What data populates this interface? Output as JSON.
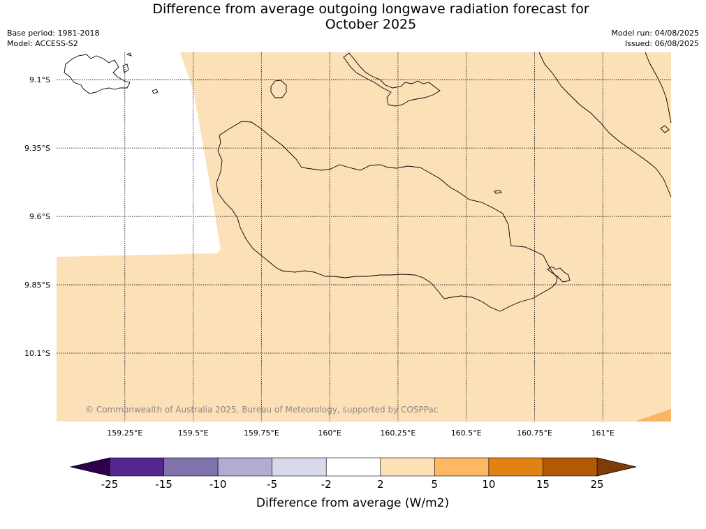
{
  "header": {
    "title_line1": "Difference from average outgoing longwave radiation forecast for",
    "title_line2": "October 2025",
    "base_period": "Base period: 1981-2018",
    "model": "Model: ACCESS-S2",
    "model_run": "Model run: 04/08/2025",
    "issued": "Issued: 06/08/2025"
  },
  "map": {
    "lat_labels": [
      "9.1°S",
      "9.35°S",
      "9.6°S",
      "9.85°S",
      "10.1°S"
    ],
    "lat_values": [
      -9.1,
      -9.35,
      -9.6,
      -9.85,
      -10.1
    ],
    "lon_labels": [
      "159.25°E",
      "159.5°E",
      "159.75°E",
      "160°E",
      "160.25°E",
      "160.5°E",
      "160.75°E",
      "161°E"
    ],
    "lon_values": [
      159.25,
      159.5,
      159.75,
      160.0,
      160.25,
      160.5,
      160.75,
      161.0
    ],
    "lon_range": [
      159.0,
      161.25
    ],
    "lat_range": [
      -9.0,
      -10.35
    ],
    "fill_color": "#fce0b7",
    "nodata_color": "#ffffff",
    "corner_color": "#fbb463",
    "copyright": "© Commonwealth of Australia 2025, Bureau of Meteorology, supported by COSPPac"
  },
  "legend": {
    "title": "Difference from average (W/m2)",
    "boundaries": [
      "-25",
      "-15",
      "-10",
      "-5",
      "-2",
      "2",
      "5",
      "10",
      "15",
      "25"
    ],
    "colors": [
      "#54278f",
      "#8073ac",
      "#b2abd2",
      "#d8daeb",
      "#ffffff",
      "#fee0b6",
      "#fdb863",
      "#e08214",
      "#b35806"
    ],
    "under_color": "#2d004b",
    "over_color": "#7f3b08"
  }
}
